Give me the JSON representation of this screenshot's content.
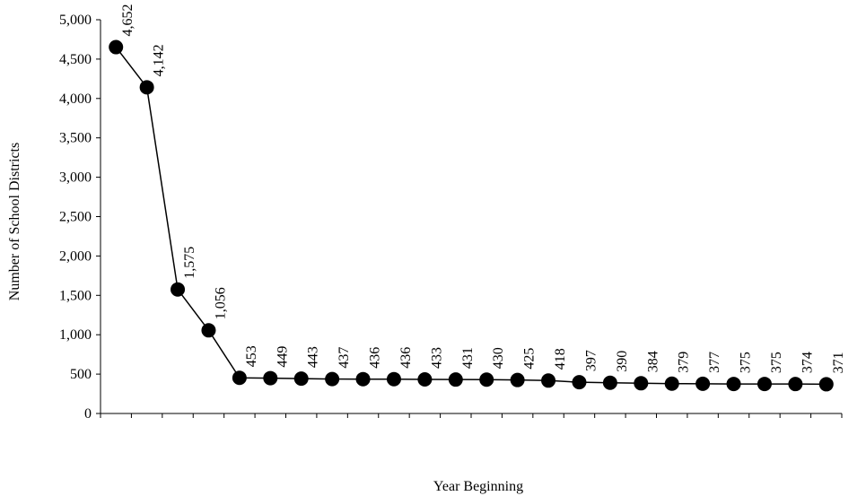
{
  "chart_data": {
    "type": "line",
    "title": "",
    "xlabel": "Year Beginning",
    "ylabel": "Number of School Districts",
    "ylim": [
      0,
      5000
    ],
    "yticks": [
      "0",
      "500",
      "1,000",
      "1,500",
      "2,000",
      "2,500",
      "3,000",
      "3,500",
      "4,000",
      "4,500",
      "5,000"
    ],
    "ytick_values": [
      0,
      500,
      1000,
      1500,
      2000,
      2500,
      3000,
      3500,
      4000,
      4500,
      5000
    ],
    "grid": false,
    "legend": "none",
    "series": [
      {
        "values": [
          4652,
          4142,
          1575,
          1056,
          453,
          449,
          443,
          437,
          436,
          436,
          433,
          431,
          430,
          425,
          418,
          397,
          390,
          384,
          379,
          377,
          375,
          375,
          374,
          371
        ],
        "labels": [
          "4,652",
          "4,142",
          "1,575",
          "1,056",
          "453",
          "449",
          "443",
          "437",
          "436",
          "436",
          "433",
          "431",
          "430",
          "425",
          "418",
          "397",
          "390",
          "384",
          "379",
          "377",
          "375",
          "375",
          "374",
          "371"
        ]
      }
    ],
    "x_tick_count": 24,
    "colors": {
      "line": "#000000",
      "marker": "#000000",
      "axis": "#000000"
    }
  }
}
